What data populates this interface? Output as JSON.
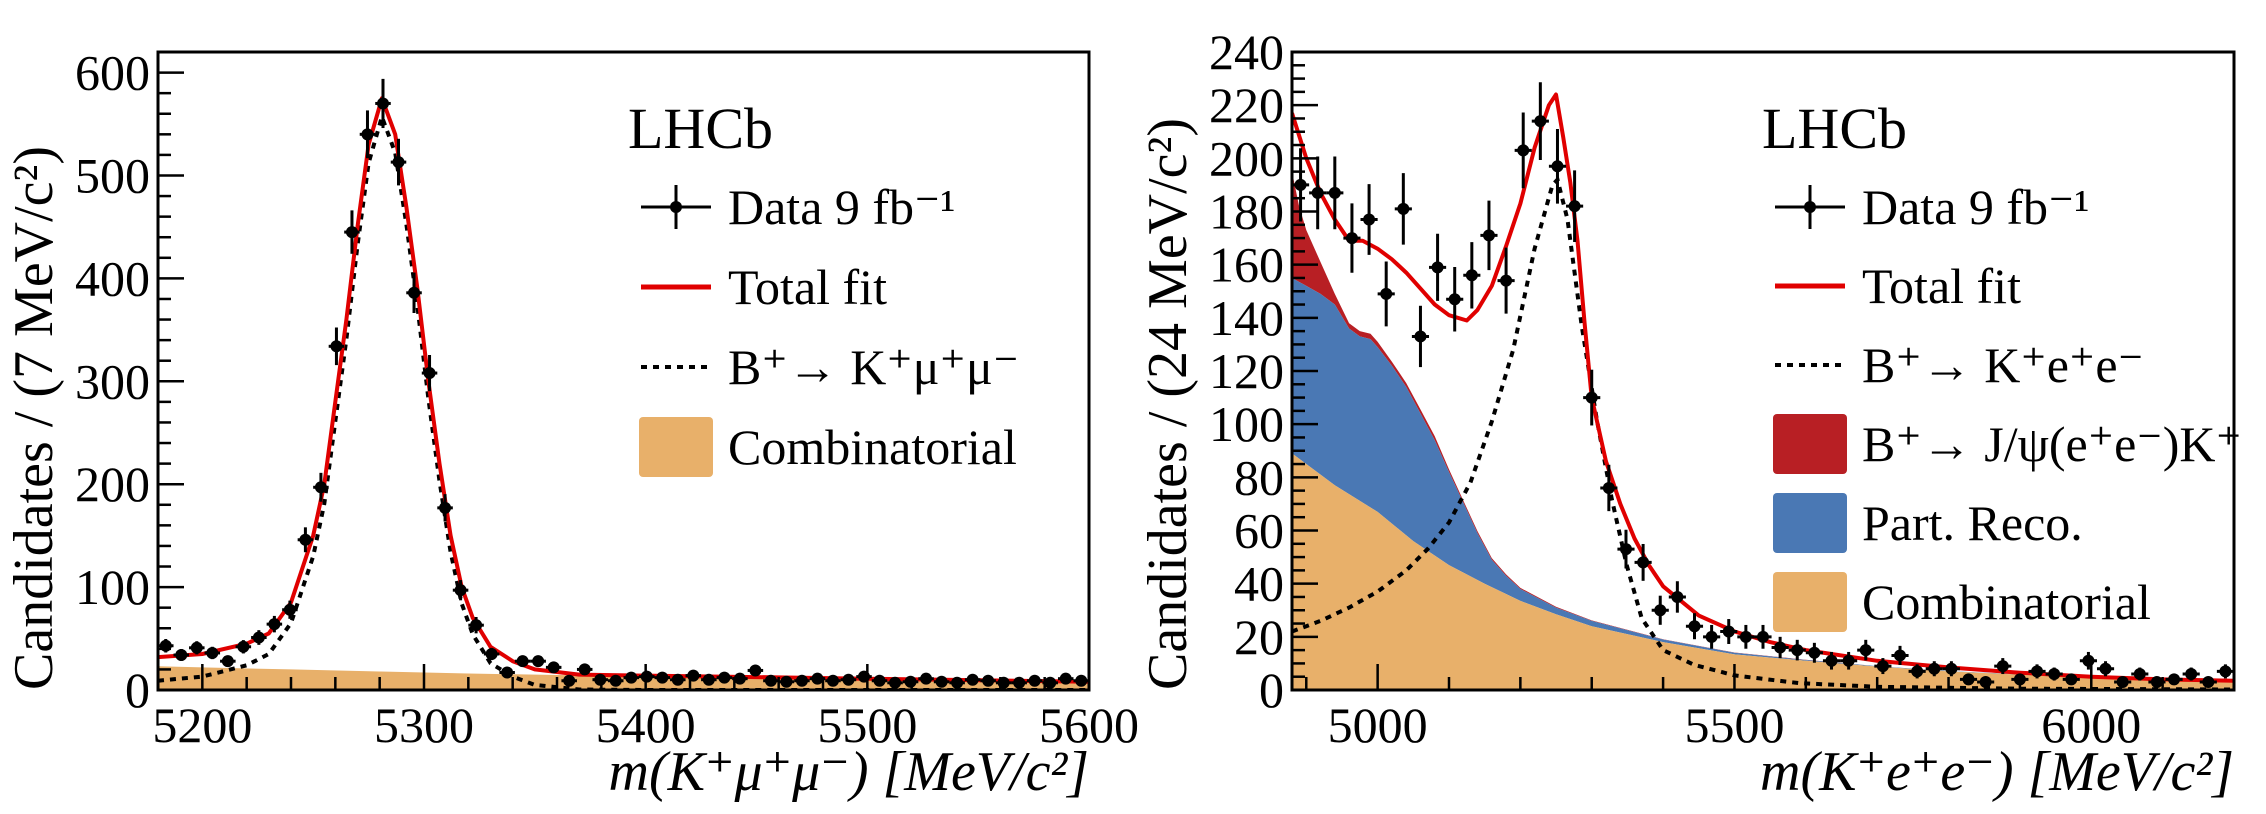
{
  "chart_data": [
    {
      "type": "line",
      "experiment_label": "LHCb",
      "xlabel": "m(K⁺μ⁺μ⁻) [MeV/c²]",
      "ylabel": "Candidates / (7 MeV/c²)",
      "xlim": [
        5180,
        5600
      ],
      "ylim": [
        0,
        620
      ],
      "xticks": [
        5200,
        5300,
        5400,
        5500,
        5600
      ],
      "yticks": [
        0,
        100,
        200,
        300,
        400,
        500,
        600
      ],
      "x_minor_step": 20,
      "y_minor_step": 20,
      "grid": false,
      "legend_position": "top-right",
      "legend": [
        {
          "label": "Data 9 fb⁻¹",
          "kind": "data"
        },
        {
          "label": "Total fit",
          "kind": "total"
        },
        {
          "label": "B⁺→ K⁺μ⁺μ⁻",
          "kind": "signal"
        },
        {
          "label": "Combinatorial",
          "kind": "comb"
        }
      ],
      "colors": {
        "total": "#e00000",
        "signal": "#000000",
        "comb": "#e8b06a",
        "data": "#000000"
      },
      "data": {
        "bin_width": 7,
        "x": [
          5183.5,
          5190.5,
          5197.5,
          5204.5,
          5211.5,
          5218.5,
          5225.5,
          5232.5,
          5239.5,
          5246.5,
          5253.5,
          5260.5,
          5267.5,
          5274.5,
          5281.5,
          5288.5,
          5295.5,
          5302.5,
          5309.5,
          5316.5,
          5323.5,
          5330.5,
          5337.5,
          5344.5,
          5351.5,
          5358.5,
          5365.5,
          5372.5,
          5379.5,
          5386.5,
          5393.5,
          5400.5,
          5407.5,
          5414.5,
          5421.5,
          5428.5,
          5435.5,
          5442.5,
          5449.5,
          5456.5,
          5463.5,
          5470.5,
          5477.5,
          5484.5,
          5491.5,
          5498.5,
          5505.5,
          5512.5,
          5519.5,
          5526.5,
          5533.5,
          5540.5,
          5547.5,
          5554.5,
          5561.5,
          5568.5,
          5575.5,
          5582.5,
          5589.5,
          5596.5
        ],
        "y": [
          43,
          34,
          41,
          36,
          28,
          42,
          51,
          64,
          78,
          146,
          197,
          334,
          445,
          540,
          570,
          513,
          386,
          308,
          177,
          97,
          63,
          35,
          17,
          28,
          28,
          22,
          9,
          20,
          10,
          9,
          12,
          13,
          12,
          10,
          14,
          10,
          12,
          11,
          19,
          9,
          8,
          9,
          11,
          9,
          10,
          13,
          9,
          7,
          8,
          11,
          8,
          7,
          10,
          9,
          7,
          7,
          9,
          7,
          11,
          9
        ]
      },
      "total_fit": {
        "x": [
          5180,
          5200,
          5220,
          5230,
          5240,
          5250,
          5255,
          5260,
          5265,
          5270,
          5275,
          5281,
          5287,
          5292,
          5297,
          5302,
          5307,
          5312,
          5317,
          5322,
          5330,
          5340,
          5350,
          5370,
          5400,
          5450,
          5500,
          5600
        ],
        "y": [
          32,
          35,
          45,
          55,
          85,
          150,
          200,
          280,
          360,
          450,
          530,
          575,
          540,
          470,
          390,
          300,
          220,
          150,
          100,
          70,
          42,
          28,
          20,
          15,
          14,
          12.5,
          11,
          8
        ]
      },
      "signal": {
        "x": [
          5180,
          5200,
          5220,
          5230,
          5240,
          5250,
          5255,
          5260,
          5265,
          5270,
          5275,
          5281,
          5287,
          5292,
          5297,
          5302,
          5307,
          5312,
          5317,
          5322,
          5330,
          5340,
          5350,
          5370,
          5400,
          5600
        ],
        "y": [
          9,
          13,
          24,
          35,
          65,
          130,
          181,
          261,
          341,
          432,
          512,
          557,
          522,
          453,
          373,
          283,
          203,
          134,
          84,
          54,
          26,
          13,
          5,
          0.5,
          0,
          0
        ]
      },
      "combinatorial": {
        "x": [
          5180,
          5200,
          5240,
          5280,
          5320,
          5360,
          5400,
          5450,
          5500,
          5550,
          5600
        ],
        "y": [
          23,
          22,
          20,
          18,
          16,
          14.6,
          13.3,
          11.8,
          10.5,
          9,
          7.6
        ]
      }
    },
    {
      "type": "line",
      "experiment_label": "LHCb",
      "xlabel": "m(K⁺e⁺e⁻) [MeV/c²]",
      "ylabel": "Candidates / (24 MeV/c²)",
      "xlim": [
        4880,
        6200
      ],
      "ylim": [
        0,
        240
      ],
      "xticks": [
        5000,
        5500,
        6000
      ],
      "yticks": [
        0,
        20,
        40,
        60,
        80,
        100,
        120,
        140,
        160,
        180,
        200,
        220,
        240
      ],
      "x_minor_step": 100,
      "y_minor_step": 5,
      "grid": false,
      "legend_position": "top-right",
      "legend": [
        {
          "label": "Data 9 fb⁻¹",
          "kind": "data"
        },
        {
          "label": "Total fit",
          "kind": "total"
        },
        {
          "label": "B⁺→ K⁺e⁺e⁻",
          "kind": "signal"
        },
        {
          "label": "B⁺→ J/ψ(e⁺e⁻)K⁺",
          "kind": "jpsi"
        },
        {
          "label": "Part. Reco.",
          "kind": "partreco"
        },
        {
          "label": "Combinatorial",
          "kind": "comb"
        }
      ],
      "colors": {
        "total": "#e00000",
        "signal": "#000000",
        "jpsi": "#b81f24",
        "partreco": "#4a78b4",
        "comb": "#e8b06a",
        "data": "#000000"
      },
      "data": {
        "bin_width": 24,
        "x": [
          4892,
          4916,
          4940,
          4964,
          4988,
          5012,
          5036,
          5060,
          5084,
          5108,
          5132,
          5156,
          5180,
          5204,
          5228,
          5252,
          5276,
          5300,
          5324,
          5348,
          5372,
          5396,
          5420,
          5444,
          5468,
          5492,
          5516,
          5540,
          5564,
          5588,
          5612,
          5636,
          5660,
          5684,
          5708,
          5732,
          5756,
          5780,
          5804,
          5828,
          5852,
          5876,
          5900,
          5924,
          5948,
          5972,
          5996,
          6020,
          6044,
          6068,
          6092,
          6116,
          6140,
          6164,
          6188
        ],
        "y": [
          190,
          187,
          187,
          170,
          177,
          149,
          181,
          133,
          159,
          147,
          156,
          171,
          154,
          203,
          214,
          197,
          182,
          110,
          76,
          53,
          48,
          30,
          35,
          24,
          20,
          22,
          20,
          20,
          16,
          15,
          14,
          11,
          11,
          15,
          9,
          13,
          7,
          8,
          8,
          4,
          3,
          9,
          4,
          7,
          6,
          4,
          11,
          8,
          3,
          6,
          3,
          4,
          6,
          3,
          7
        ]
      },
      "total_fit": {
        "x": [
          4880,
          4900,
          4920,
          4940,
          4960,
          4979,
          5000,
          5020,
          5040,
          5060,
          5080,
          5100,
          5125,
          5140,
          5160,
          5180,
          5200,
          5220,
          5240,
          5250,
          5260,
          5270,
          5280,
          5290,
          5300,
          5320,
          5340,
          5360,
          5380,
          5400,
          5450,
          5500,
          5550,
          5600,
          5700,
          5800,
          5900,
          6000,
          6100,
          6200
        ],
        "y": [
          217,
          200,
          187,
          177,
          169,
          169,
          166,
          162,
          157,
          151,
          145,
          141,
          139,
          143,
          152,
          167,
          183,
          204,
          220,
          224,
          208,
          191,
          169,
          138,
          110,
          86,
          70,
          57,
          47,
          39,
          28,
          22,
          18,
          15,
          11,
          8.5,
          6.5,
          5,
          4,
          3.5
        ]
      },
      "signal": {
        "x": [
          4880,
          4920,
          4960,
          5000,
          5040,
          5070,
          5100,
          5130,
          5160,
          5190,
          5220,
          5245,
          5252,
          5266,
          5286,
          5307,
          5328,
          5349,
          5370,
          5400,
          5443,
          5500,
          5590,
          5700,
          5900,
          6200
        ],
        "y": [
          22,
          26,
          31,
          37,
          45,
          53,
          63,
          78,
          101,
          128,
          166,
          190,
          192,
          177,
          137,
          102,
          72,
          47,
          27,
          15,
          9.5,
          5.5,
          2.6,
          1.2,
          0.5,
          0.2
        ]
      },
      "combinatorial": {
        "x": [
          4880,
          4940,
          5000,
          5050,
          5100,
          5150,
          5200,
          5250,
          5300,
          5400,
          5500,
          5600,
          5700,
          5800,
          5900,
          6000,
          6100,
          6200
        ],
        "y": [
          89,
          77,
          67,
          56,
          47,
          40,
          33.5,
          28.5,
          24,
          18,
          13.4,
          11,
          8.8,
          7,
          5.8,
          5,
          4.1,
          3.3
        ]
      },
      "part_reco_cumulative": {
        "x": [
          4880,
          4900,
          4920,
          4940,
          4960,
          4975,
          4990,
          5000,
          5020,
          5040,
          5060,
          5080,
          5100,
          5120,
          5140,
          5160,
          5180,
          5200,
          5250,
          5300,
          5400,
          5500,
          5600,
          5700,
          5800,
          5900,
          6000,
          6100,
          6200
        ],
        "y": [
          155,
          152,
          149,
          145,
          136,
          133,
          132,
          129,
          122,
          114,
          104,
          94,
          82,
          70.5,
          59,
          49,
          43,
          38,
          31,
          26,
          19,
          14,
          11.3,
          9,
          7.1,
          5.9,
          5.1,
          4.2,
          3.4
        ]
      },
      "jpsi_cumulative": {
        "x": [
          4880,
          4890,
          4900,
          4920,
          4940,
          4960,
          4975,
          4990,
          5000,
          5020,
          5040,
          5060,
          5080,
          5100,
          5120,
          5140,
          5160,
          5180,
          5200,
          5250,
          5300,
          5400,
          5500,
          5600,
          5700,
          5800,
          5900,
          6000,
          6100,
          6200
        ],
        "y": [
          195,
          182,
          173,
          161,
          149,
          138,
          135,
          134,
          131,
          123.5,
          115.5,
          105.5,
          95.5,
          83,
          71.3,
          59.7,
          49.6,
          43.5,
          38.4,
          31.3,
          26.2,
          19.1,
          14.1,
          11.4,
          9,
          7.1,
          5.9,
          5.1,
          4.2,
          3.4
        ]
      }
    }
  ]
}
